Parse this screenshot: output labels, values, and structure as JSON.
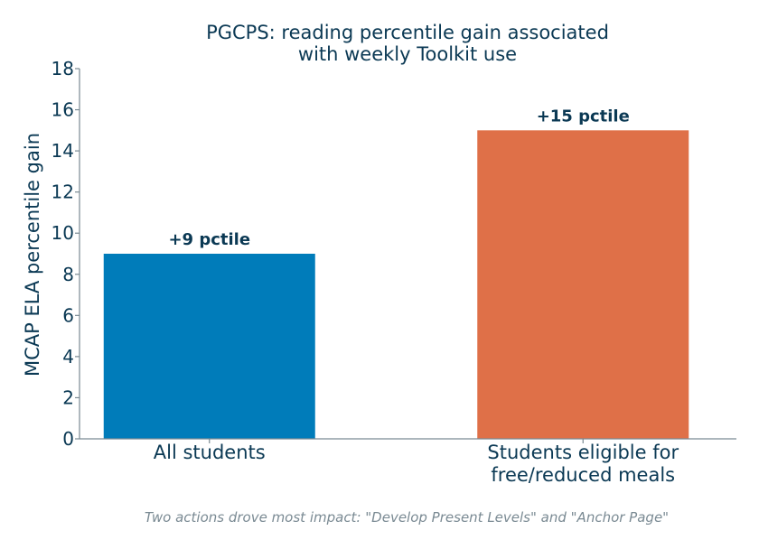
{
  "chart_data": {
    "type": "bar",
    "title": [
      "PGCPS: reading percentile gain associated",
      "with weekly Toolkit use"
    ],
    "ylabel": "MCAP ELA percentile gain",
    "xlabel": "",
    "categories": [
      [
        "All students"
      ],
      [
        "Students eligible for",
        "free/reduced meals"
      ]
    ],
    "values": [
      9,
      15
    ],
    "data_labels": [
      "+9 pctile",
      "+15 pctile"
    ],
    "ylim": [
      0,
      18
    ],
    "yticks": [
      0,
      2,
      4,
      6,
      8,
      10,
      12,
      14,
      16,
      18
    ],
    "grid": false,
    "legend": "none"
  },
  "colors": {
    "bars": [
      "#007cba",
      "#df7048"
    ],
    "text": "#0b3954",
    "axis": "#7a8a93",
    "footnote": "#7a8a93"
  },
  "footnote": "Two actions drove most impact: \"Develop Present Levels\" and \"Anchor Page\""
}
